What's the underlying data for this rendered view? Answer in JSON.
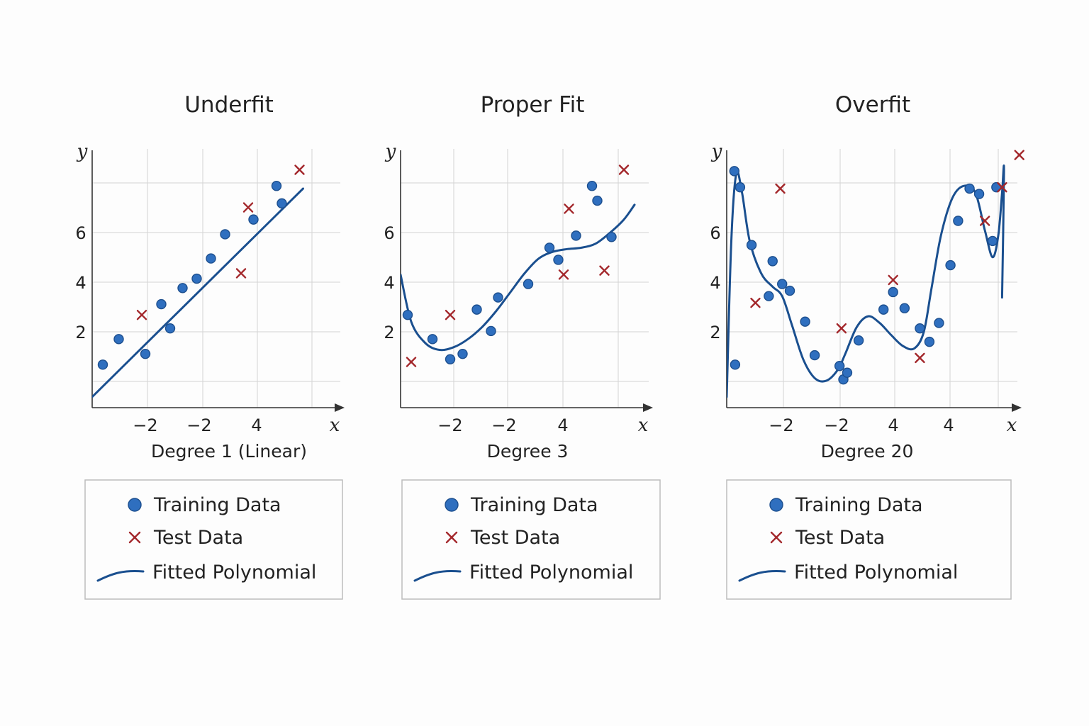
{
  "colors": {
    "training": "#2f6fbf",
    "test": "#a3272b",
    "fit": "#1a4f8f",
    "legend_border": "#bdbdbd"
  },
  "legend": {
    "training_label": "Training Data",
    "test_label": "Test Data",
    "fit_label": "Fitted Polynomial"
  },
  "chart_data": [
    {
      "type": "scatter",
      "title": "Underfit",
      "xlabel": "Degree 1 (Linear)",
      "x_axis_var": "x",
      "y_axis_var": "y",
      "x_tick_labels": [
        "−2",
        "−2",
        "4"
      ],
      "y_tick_labels": [
        "2",
        "4",
        "6"
      ],
      "xlim": [
        0,
        7
      ],
      "ylim": [
        -0.2,
        8.9
      ],
      "grid": true,
      "legend_position": "below",
      "series": [
        {
          "name": "Training Data",
          "x": [
            0.3,
            0.75,
            1.5,
            1.95,
            2.2,
            2.55,
            2.95,
            3.35,
            3.75,
            4.55,
            5.2,
            5.35
          ],
          "y": [
            1.4,
            2.35,
            1.8,
            3.65,
            2.75,
            4.25,
            4.6,
            5.35,
            6.25,
            6.8,
            8.05,
            7.4
          ]
        },
        {
          "name": "Test Data",
          "x": [
            1.4,
            4.2,
            4.4,
            5.85
          ],
          "y": [
            3.25,
            4.8,
            7.25,
            8.65
          ]
        },
        {
          "name": "Fitted Polynomial",
          "x": [
            0,
            5.95
          ],
          "y": [
            0.2,
            7.95
          ]
        }
      ]
    },
    {
      "type": "scatter",
      "title": "Proper Fit",
      "xlabel": "Degree 3",
      "x_axis_var": "x",
      "y_axis_var": "y",
      "x_tick_labels": [
        "−2",
        "−2",
        "4"
      ],
      "y_tick_labels": [
        "2",
        "4",
        "6"
      ],
      "xlim": [
        0,
        7
      ],
      "ylim": [
        -0.2,
        8.9
      ],
      "grid": true,
      "legend_position": "below",
      "series": [
        {
          "name": "Training Data",
          "x": [
            0.2,
            0.9,
            1.4,
            1.75,
            2.15,
            2.55,
            2.75,
            3.6,
            4.2,
            4.45,
            4.95,
            5.4,
            5.55,
            5.95
          ],
          "y": [
            3.25,
            2.35,
            1.6,
            1.8,
            3.45,
            2.65,
            3.9,
            4.4,
            5.75,
            5.3,
            6.2,
            8.05,
            7.5,
            6.15
          ]
        },
        {
          "name": "Test Data",
          "x": [
            0.3,
            1.4,
            4.6,
            4.75,
            5.75,
            6.3
          ],
          "y": [
            1.5,
            3.25,
            4.75,
            7.2,
            4.9,
            8.65
          ]
        },
        {
          "name": "Fitted Polynomial",
          "x": [
            0,
            0.3,
            0.7,
            1.1,
            1.5,
            1.9,
            2.3,
            2.7,
            3.1,
            3.5,
            3.9,
            4.3,
            4.7,
            5.1,
            5.5,
            5.9,
            6.3,
            6.6
          ],
          "y": [
            4.75,
            3.0,
            2.2,
            1.95,
            2.05,
            2.35,
            2.8,
            3.4,
            4.1,
            4.8,
            5.35,
            5.6,
            5.7,
            5.75,
            5.9,
            6.3,
            6.8,
            7.35
          ]
        }
      ]
    },
    {
      "type": "scatter",
      "title": "Overfit",
      "xlabel": "Degree 20",
      "x_axis_var": "x",
      "y_axis_var": "y",
      "x_tick_labels": [
        "−2",
        "−2",
        "4",
        "4"
      ],
      "y_tick_labels": [
        "2",
        "4",
        "6"
      ],
      "xlim": [
        0,
        7.6
      ],
      "ylim": [
        -0.2,
        8.9
      ],
      "grid": true,
      "legend_position": "below",
      "series": [
        {
          "name": "Training Data",
          "x": [
            0.2,
            0.22,
            0.35,
            0.65,
            1.1,
            1.2,
            1.45,
            1.65,
            2.05,
            2.3,
            2.95,
            3.05,
            3.15,
            3.45,
            4.1,
            4.35,
            4.65,
            5.05,
            5.3,
            5.55,
            5.85,
            6.05,
            6.35,
            6.6,
            6.95,
            7.05
          ],
          "y": [
            8.6,
            1.4,
            8.0,
            5.85,
            3.95,
            5.25,
            4.4,
            4.15,
            3.0,
            1.75,
            1.35,
            0.85,
            1.1,
            2.3,
            3.45,
            4.1,
            3.5,
            2.75,
            2.25,
            2.95,
            5.1,
            6.75,
            7.95,
            7.75,
            6.0,
            8.0
          ]
        },
        {
          "name": "Test Data",
          "x": [
            0.75,
            1.4,
            3.0,
            4.35,
            5.05,
            6.75,
            7.2,
            7.65
          ],
          "y": [
            3.7,
            7.95,
            2.75,
            4.55,
            1.65,
            6.75,
            8.0,
            9.2
          ]
        },
        {
          "name": "Fitted Polynomial",
          "x": [
            0,
            0.12,
            0.25,
            0.4,
            0.6,
            0.9,
            1.2,
            1.45,
            1.7,
            2.0,
            2.3,
            2.6,
            2.9,
            3.1,
            3.4,
            3.7,
            4.0,
            4.3,
            4.6,
            4.9,
            5.15,
            5.35,
            5.6,
            5.9,
            6.2,
            6.5,
            6.75,
            6.95,
            7.1,
            7.2,
            7.25,
            7.2
          ],
          "y": [
            0.2,
            6.0,
            8.5,
            7.8,
            6.0,
            4.8,
            4.3,
            3.95,
            2.9,
            1.6,
            0.9,
            0.8,
            1.2,
            1.8,
            2.8,
            3.2,
            2.95,
            2.5,
            2.1,
            2.0,
            2.6,
            4.2,
            6.2,
            7.6,
            8.05,
            7.8,
            6.4,
            5.4,
            6.2,
            7.8,
            8.6,
            3.9
          ]
        }
      ]
    }
  ]
}
